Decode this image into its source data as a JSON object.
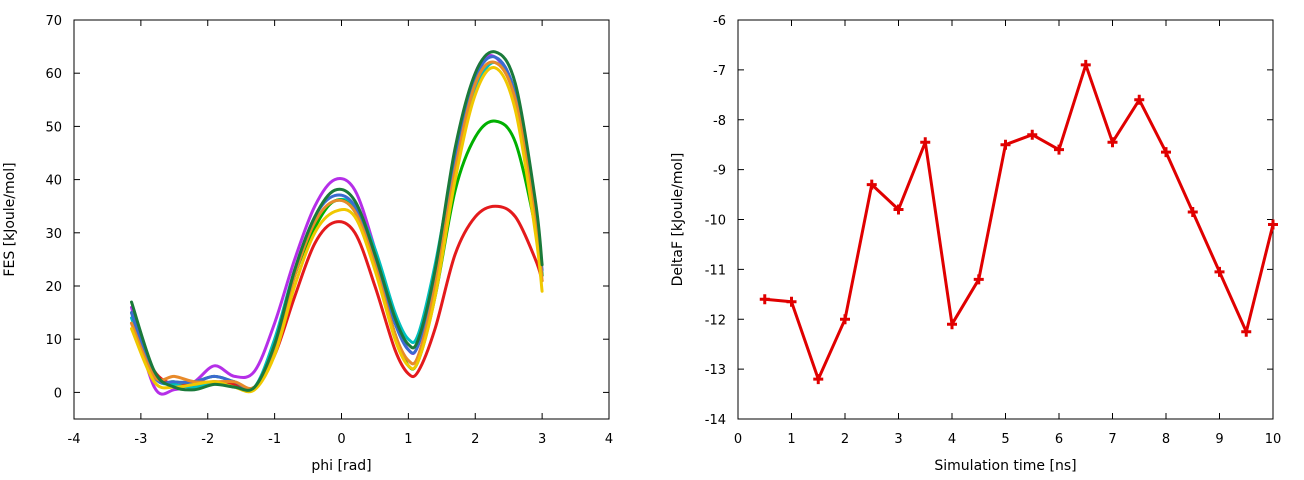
{
  "chart_data": [
    {
      "type": "line",
      "title": "",
      "xlabel": "phi [rad]",
      "ylabel": "FES [kJoule/mol]",
      "xlim": [
        -4,
        4
      ],
      "ylim": [
        -5,
        70
      ],
      "xticks": [
        -4,
        -3,
        -2,
        -1,
        0,
        1,
        2,
        3,
        4
      ],
      "yticks": [
        0,
        10,
        20,
        30,
        40,
        50,
        60,
        70
      ],
      "grid": false,
      "legend": "none",
      "series": [
        {
          "color": "#e41a1c",
          "x": [
            -3.14,
            -2.8,
            -2.5,
            -2.2,
            -1.9,
            -1.6,
            -1.3,
            -1.0,
            -0.7,
            -0.4,
            -0.1,
            0.2,
            0.5,
            0.8,
            1.0,
            1.15,
            1.4,
            1.7,
            2.0,
            2.3,
            2.6,
            2.9,
            3.0
          ],
          "y": [
            13,
            4,
            1.5,
            1.5,
            2,
            1.5,
            1,
            7,
            18,
            28,
            32,
            30,
            20,
            8,
            3.5,
            4,
            12,
            26,
            33,
            35,
            33,
            25,
            21
          ]
        },
        {
          "color": "#b52fe8",
          "x": [
            -3.14,
            -2.8,
            -2.5,
            -2.2,
            -1.9,
            -1.6,
            -1.3,
            -1.0,
            -0.7,
            -0.4,
            -0.1,
            0.2,
            0.5,
            0.8,
            1.0,
            1.15,
            1.4,
            1.7,
            2.0,
            2.3,
            2.6,
            2.9,
            3.0
          ],
          "y": [
            16,
            1,
            0.5,
            2,
            5,
            3,
            4,
            13,
            25,
            35,
            40,
            38,
            27,
            14,
            8,
            9,
            22,
            44,
            60,
            63,
            55,
            33,
            22
          ]
        },
        {
          "color": "#00c0c0",
          "x": [
            -3.14,
            -2.8,
            -2.5,
            -2.2,
            -1.9,
            -1.6,
            -1.3,
            -1.0,
            -0.7,
            -0.4,
            -0.1,
            0.2,
            0.5,
            0.8,
            1.0,
            1.15,
            1.4,
            1.7,
            2.0,
            2.3,
            2.6,
            2.9,
            3.0
          ],
          "y": [
            14,
            3,
            1.5,
            1,
            2,
            1,
            1,
            10,
            23,
            32,
            36,
            35,
            27,
            15,
            10,
            11,
            24,
            44,
            57,
            62,
            55,
            33,
            22
          ]
        },
        {
          "color": "#00b000",
          "x": [
            -3.14,
            -2.8,
            -2.5,
            -2.2,
            -1.9,
            -1.6,
            -1.3,
            -1.0,
            -0.7,
            -0.4,
            -0.1,
            0.2,
            0.5,
            0.8,
            1.0,
            1.15,
            1.4,
            1.7,
            2.0,
            2.3,
            2.6,
            2.9,
            3.0
          ],
          "y": [
            15,
            3,
            2,
            2,
            3,
            2,
            1,
            8,
            22,
            31,
            36,
            34,
            24,
            11,
            5,
            6,
            18,
            38,
            48,
            51,
            47,
            31,
            22
          ]
        },
        {
          "color": "#3a6bd0",
          "x": [
            -3.14,
            -2.8,
            -2.5,
            -2.2,
            -1.9,
            -1.6,
            -1.3,
            -1.0,
            -0.7,
            -0.4,
            -0.1,
            0.2,
            0.5,
            0.8,
            1.0,
            1.15,
            1.4,
            1.7,
            2.0,
            2.3,
            2.6,
            2.9,
            3.0
          ],
          "y": [
            15,
            3,
            2,
            2,
            3,
            2,
            1,
            9,
            23,
            33,
            37,
            35,
            25,
            13,
            8,
            9,
            22,
            44,
            59,
            63,
            56,
            34,
            23
          ]
        },
        {
          "color": "#e88a2a",
          "x": [
            -3.14,
            -2.8,
            -2.5,
            -2.2,
            -1.9,
            -1.6,
            -1.3,
            -1.0,
            -0.7,
            -0.4,
            -0.1,
            0.2,
            0.5,
            0.8,
            1.0,
            1.15,
            1.4,
            1.7,
            2.0,
            2.3,
            2.6,
            2.9,
            3.0
          ],
          "y": [
            13,
            3,
            3,
            2,
            2,
            2,
            1,
            8,
            22,
            32,
            36,
            34,
            24,
            11,
            6,
            7,
            20,
            42,
            58,
            62,
            55,
            33,
            21
          ]
        },
        {
          "color": "#f0c800",
          "x": [
            -3.14,
            -2.8,
            -2.5,
            -2.2,
            -1.9,
            -1.6,
            -1.3,
            -1.0,
            -0.7,
            -0.4,
            -0.1,
            0.2,
            0.5,
            0.8,
            1.0,
            1.15,
            1.4,
            1.7,
            2.0,
            2.3,
            2.6,
            2.9,
            3.0
          ],
          "y": [
            12,
            2,
            1,
            1.5,
            2,
            1,
            0.5,
            7,
            20,
            30,
            34,
            33,
            23,
            10,
            5,
            6,
            18,
            40,
            56,
            61,
            53,
            30,
            19
          ]
        },
        {
          "color": "#1a7a3a",
          "x": [
            -3.14,
            -2.8,
            -2.5,
            -2.2,
            -1.9,
            -1.6,
            -1.3,
            -1.0,
            -0.7,
            -0.4,
            -0.1,
            0.2,
            0.5,
            0.8,
            1.0,
            1.15,
            1.4,
            1.7,
            2.0,
            2.3,
            2.6,
            2.9,
            3.0
          ],
          "y": [
            17,
            4,
            1,
            0.5,
            1.5,
            1,
            1,
            9,
            23,
            33,
            38,
            36,
            26,
            14,
            9,
            10,
            23,
            46,
            60,
            64,
            58,
            36,
            24
          ]
        }
      ]
    },
    {
      "type": "line",
      "title": "",
      "xlabel": "Simulation time [ns]",
      "ylabel": "DeltaF [kJoule/mol]",
      "xlim": [
        0,
        10
      ],
      "ylim": [
        -14,
        -6
      ],
      "xticks": [
        0,
        1,
        2,
        3,
        4,
        5,
        6,
        7,
        8,
        9,
        10
      ],
      "yticks": [
        -14,
        -13,
        -12,
        -11,
        -10,
        -9,
        -8,
        -7,
        -6
      ],
      "grid": false,
      "legend": "none",
      "series": [
        {
          "color": "#e00000",
          "marker": "plus",
          "x": [
            0.5,
            1,
            1.5,
            2,
            2.5,
            3,
            3.5,
            4,
            4.5,
            5,
            5.5,
            6,
            6.5,
            7,
            7.5,
            8,
            8.5,
            9,
            9.5,
            10
          ],
          "y": [
            -11.6,
            -11.65,
            -13.2,
            -12.0,
            -9.3,
            -9.8,
            -8.45,
            -12.1,
            -11.2,
            -8.5,
            -8.3,
            -8.6,
            -6.9,
            -8.45,
            -7.6,
            -8.65,
            -9.85,
            -11.05,
            -12.25,
            -10.1
          ]
        }
      ]
    }
  ]
}
